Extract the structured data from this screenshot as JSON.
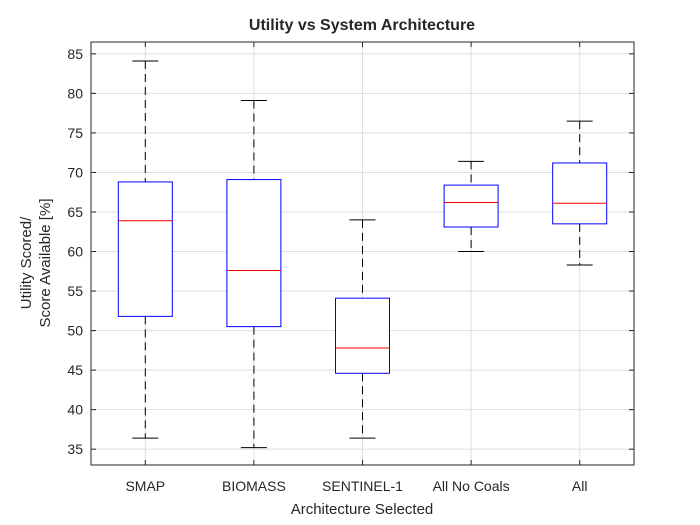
{
  "chart_data": {
    "type": "box",
    "title": "Utility vs System Architecture",
    "xlabel": "Architecture Selected",
    "ylabel_lines": [
      "Utility Scored/",
      "Score Available [%]"
    ],
    "ylim": [
      33,
      86.5
    ],
    "yticks": [
      35,
      40,
      45,
      50,
      55,
      60,
      65,
      70,
      75,
      80,
      85
    ],
    "grid": true,
    "categories": [
      "SMAP",
      "BIOMASS",
      "SENTINEL-1",
      "All No Coals",
      "All"
    ],
    "boxes": [
      {
        "category": "SMAP",
        "whisker_low": 36.4,
        "q1": 51.8,
        "median": 63.9,
        "q3": 68.8,
        "whisker_high": 84.1
      },
      {
        "category": "BIOMASS",
        "whisker_low": 35.2,
        "q1": 50.5,
        "median": 57.6,
        "q3": 69.1,
        "whisker_high": 79.1
      },
      {
        "category": "SENTINEL-1",
        "whisker_low": 36.4,
        "q1": 44.6,
        "median": 47.8,
        "q3": 54.1,
        "whisker_high": 64.0
      },
      {
        "category": "All No Coals",
        "whisker_low": 60.0,
        "q1": 63.1,
        "median": 66.2,
        "q3": 68.4,
        "whisker_high": 71.4
      },
      {
        "category": "All",
        "whisker_low": 58.3,
        "q1": 63.5,
        "median": 66.1,
        "q3": 71.2,
        "whisker_high": 76.5
      }
    ],
    "colors": {
      "box": "#0000ff",
      "median": "#ff0000",
      "whisker": "#000000",
      "grid": "#dfdfdf",
      "axis": "#262626"
    }
  }
}
